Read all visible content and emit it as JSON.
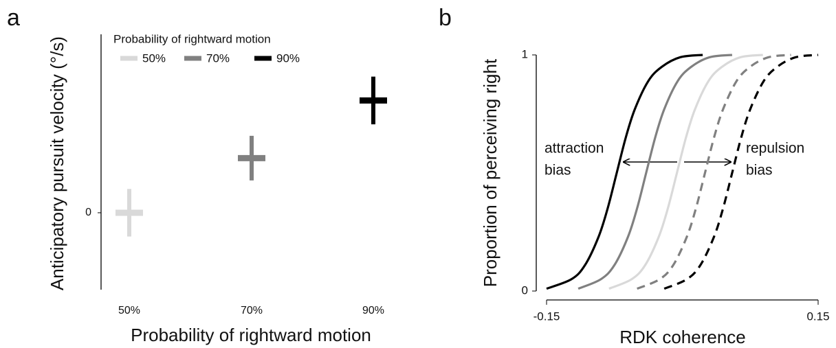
{
  "chart_data": [
    {
      "type": "errorbar",
      "panel_label": "a",
      "x_label": "Probability of rightward motion",
      "y_label": "Anticipatory pursuit velocity (°/s)",
      "legend_title": "Probability of rightward motion",
      "categories": [
        "50%",
        "70%",
        "90%"
      ],
      "series": [
        {
          "name": "50%",
          "color": "#d9d9d9",
          "values": [
            0,
            null,
            null
          ],
          "errors": [
            0.31,
            null,
            null
          ]
        },
        {
          "name": "70%",
          "color": "#808080",
          "values": [
            null,
            0.71,
            null
          ],
          "errors": [
            null,
            0.29,
            null
          ]
        },
        {
          "name": "90%",
          "color": "#000000",
          "values": [
            null,
            null,
            1.46
          ],
          "errors": [
            null,
            null,
            0.31
          ]
        }
      ],
      "ylim": [
        -1,
        2.32
      ],
      "yticks": [
        0
      ]
    },
    {
      "type": "line",
      "panel_label": "b",
      "x_label": "RDK coherence",
      "y_label": "Proportion of perceiving right",
      "annotations": [
        {
          "text": [
            "attraction",
            "bias"
          ]
        },
        {
          "text": [
            "repulsion",
            "bias"
          ]
        }
      ],
      "series": [
        {
          "color": "#000000",
          "dashed": false,
          "x": [
            -0.15,
            -0.1225,
            -0.1075,
            -0.0925,
            -0.0825,
            -0.0725,
            -0.0625,
            -0.0525,
            -0.0375,
            -0.0225,
            -0.0025,
            0.0225
          ],
          "values": [
            0.01,
            0.05,
            0.11,
            0.23,
            0.35,
            0.5,
            0.65,
            0.77,
            0.89,
            0.95,
            0.99,
            1
          ]
        },
        {
          "color": "#808080",
          "dashed": false,
          "x": [
            -0.115,
            -0.09,
            -0.075,
            -0.06,
            -0.05,
            -0.04,
            -0.03,
            -0.02,
            -0.005,
            0.01,
            0.03,
            0.055
          ],
          "values": [
            0.01,
            0.05,
            0.11,
            0.23,
            0.35,
            0.5,
            0.65,
            0.77,
            0.89,
            0.95,
            0.99,
            1
          ]
        },
        {
          "color": "#d9d9d9",
          "dashed": false,
          "x": [
            -0.081,
            -0.056,
            -0.041,
            -0.026,
            -0.016,
            -0.006,
            0.004,
            0.014,
            0.029,
            0.044,
            0.064,
            0.089
          ],
          "values": [
            0.01,
            0.05,
            0.11,
            0.23,
            0.35,
            0.5,
            0.65,
            0.77,
            0.89,
            0.95,
            0.99,
            1
          ]
        },
        {
          "color": "#808080",
          "dashed": true,
          "x": [
            -0.05,
            -0.025,
            -0.01,
            0.005,
            0.015,
            0.025,
            0.035,
            0.045,
            0.06,
            0.075,
            0.095,
            0.12
          ],
          "values": [
            0.01,
            0.05,
            0.11,
            0.23,
            0.35,
            0.5,
            0.65,
            0.77,
            0.89,
            0.95,
            0.99,
            1
          ]
        },
        {
          "color": "#000000",
          "dashed": true,
          "x": [
            -0.02,
            0.005,
            0.02,
            0.035,
            0.045,
            0.055,
            0.065,
            0.075,
            0.09,
            0.105,
            0.125,
            0.15
          ],
          "values": [
            0.01,
            0.05,
            0.11,
            0.23,
            0.35,
            0.5,
            0.65,
            0.77,
            0.89,
            0.95,
            0.99,
            1
          ]
        }
      ],
      "xlim": [
        -0.15,
        0.15
      ],
      "xticks": [
        -0.15,
        0.15
      ],
      "ylim": [
        0,
        1
      ],
      "yticks": [
        0,
        1
      ]
    }
  ]
}
